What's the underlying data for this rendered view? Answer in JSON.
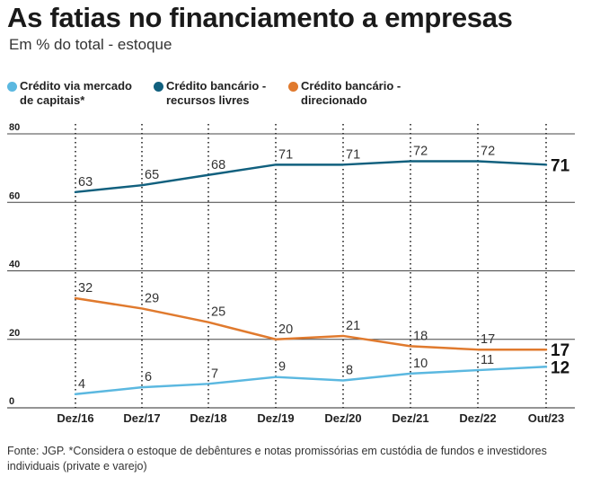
{
  "title": "As fatias no financiamento a empresas",
  "subtitle": "Em % do total - estoque",
  "legend": [
    {
      "line1": "Crédito via mercado",
      "line2": "de capitais*",
      "color": "#5bb8e0"
    },
    {
      "line1": "Crédito bancário -",
      "line2": "recursos livres",
      "color": "#11607e"
    },
    {
      "line1": "Crédito bancário -",
      "line2": "direcionado",
      "color": "#e07a2e"
    }
  ],
  "footnote": "Fonte: JGP. *Considera o estoque de debêntures e notas promissórias em custódia de fundos e investidores individuais (private e varejo)",
  "chart_data": {
    "type": "line",
    "categories": [
      "Dez/16",
      "Dez/17",
      "Dez/18",
      "Dez/19",
      "Dez/20",
      "Dez/21",
      "Dez/22",
      "Out/23"
    ],
    "ylim": [
      0,
      80
    ],
    "yticks": [
      0,
      20,
      40,
      60,
      80
    ],
    "series": [
      {
        "name": "Crédito bancário - recursos livres",
        "color": "#11607e",
        "values": [
          63,
          65,
          68,
          71,
          71,
          72,
          72,
          71
        ]
      },
      {
        "name": "Crédito bancário - direcionado",
        "color": "#e07a2e",
        "values": [
          32,
          29,
          25,
          20,
          21,
          18,
          17,
          17
        ]
      },
      {
        "name": "Crédito via mercado de capitais*",
        "color": "#5bb8e0",
        "values": [
          4,
          6,
          7,
          9,
          8,
          10,
          11,
          12
        ]
      }
    ]
  }
}
